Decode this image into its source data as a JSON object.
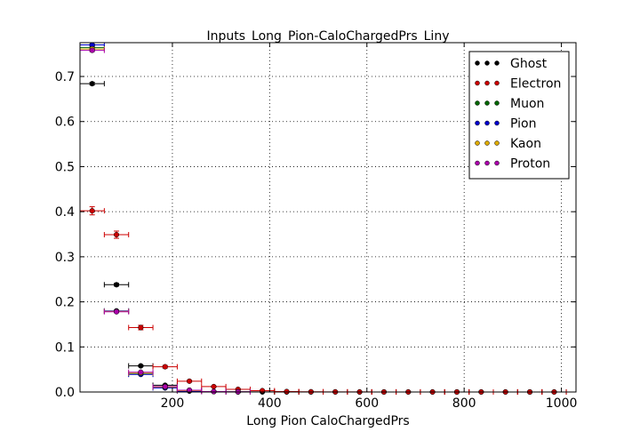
{
  "chart_data": {
    "type": "scatter",
    "title": "Inputs_Long_Pion-CaloChargedPrs_Liny",
    "xlabel": "Long Pion CaloChargedPrs",
    "ylabel": "",
    "xlim": [
      10,
      1030
    ],
    "ylim": [
      0,
      0.775
    ],
    "x_ticks": [
      200,
      400,
      600,
      800,
      1000
    ],
    "y_ticks": [
      0.0,
      0.1,
      0.2,
      0.3,
      0.4,
      0.5,
      0.6,
      0.7
    ],
    "grid": true,
    "legend_position": "top-right",
    "bin_halfwidth": 25,
    "series": [
      {
        "name": "Ghost",
        "color": "#000000",
        "x": [
          35,
          85,
          135,
          185,
          235,
          285,
          335,
          385,
          435,
          485,
          535,
          585,
          635,
          685,
          735,
          785,
          835,
          885,
          935,
          985
        ],
        "y": [
          0.684,
          0.238,
          0.058,
          0.015,
          0.004,
          0.001,
          0.0005,
          0.0002,
          0.0001,
          0.0001,
          0.0001,
          0.0001,
          0.0001,
          0.0001,
          0.0001,
          0.0001,
          0.0001,
          0.0001,
          0.0001,
          0.0001
        ],
        "yerr": [
          0.003,
          0.003,
          0.002,
          0.001,
          0.001,
          0,
          0,
          0,
          0,
          0,
          0,
          0,
          0,
          0,
          0,
          0,
          0,
          0,
          0,
          0
        ]
      },
      {
        "name": "Electron",
        "color": "#cc0000",
        "x": [
          35,
          85,
          135,
          185,
          235,
          285,
          335,
          385,
          435,
          485,
          535,
          585,
          635,
          685,
          735,
          785,
          835,
          885,
          935,
          985
        ],
        "y": [
          0.402,
          0.349,
          0.143,
          0.056,
          0.024,
          0.012,
          0.006,
          0.003,
          0.001,
          0.0005,
          0.0003,
          0.0002,
          0.0001,
          0.0001,
          0.0001,
          0.0001,
          0.0001,
          0.0001,
          0.0001,
          0.0001
        ],
        "yerr": [
          0.009,
          0.008,
          0.005,
          0.003,
          0.002,
          0.001,
          0.001,
          0.001,
          0,
          0,
          0,
          0,
          0,
          0,
          0,
          0,
          0,
          0,
          0,
          0
        ]
      },
      {
        "name": "Muon",
        "color": "#006600",
        "x": [
          35,
          85,
          135,
          185,
          235,
          285,
          335
        ],
        "y": [
          0.764,
          0.179,
          0.04,
          0.01,
          0.003,
          0.001,
          0.0003
        ],
        "yerr": [
          0.003,
          0.002,
          0.001,
          0.001,
          0,
          0,
          0
        ]
      },
      {
        "name": "Pion",
        "color": "#0000cc",
        "x": [
          35,
          85,
          135,
          185,
          235,
          285,
          335
        ],
        "y": [
          0.77,
          0.18,
          0.039,
          0.009,
          0.002,
          0.001,
          0.0003
        ],
        "yerr": [
          0.002,
          0.002,
          0.001,
          0.001,
          0,
          0,
          0
        ]
      },
      {
        "name": "Kaon",
        "color": "#ddaa00",
        "x": [
          35,
          85,
          135,
          185,
          235,
          285,
          335
        ],
        "y": [
          0.761,
          0.179,
          0.042,
          0.011,
          0.003,
          0.001,
          0.0003
        ],
        "yerr": [
          0.002,
          0.002,
          0.001,
          0.001,
          0,
          0,
          0
        ]
      },
      {
        "name": "Proton",
        "color": "#aa00aa",
        "x": [
          35,
          85,
          135,
          185,
          235,
          285,
          335
        ],
        "y": [
          0.758,
          0.178,
          0.044,
          0.012,
          0.004,
          0.001,
          0.0004
        ],
        "yerr": [
          0.003,
          0.002,
          0.001,
          0.001,
          0,
          0,
          0
        ]
      }
    ]
  }
}
